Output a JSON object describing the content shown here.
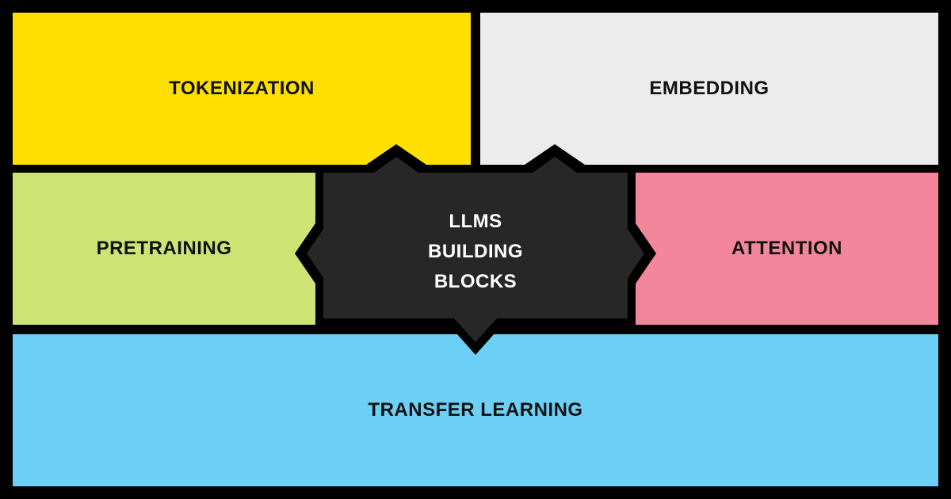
{
  "colors": {
    "background": "#000000",
    "tokenization": "#FFDF00",
    "embedding": "#ECECEC",
    "pretraining": "#CEE374",
    "attention": "#F4869B",
    "transfer_learning": "#6CCFF5",
    "center": "#272727",
    "center_text": "#FFFFFF",
    "panel_text": "#111111"
  },
  "center": {
    "lines": [
      "LLMS",
      "BUILDING",
      "BLOCKS"
    ]
  },
  "panels": {
    "tokenization": "TOKENIZATION",
    "embedding": "EMBEDDING",
    "pretraining": "PRETRAINING",
    "attention": "ATTENTION",
    "transfer_learning": "TRANSFER LEARNING"
  }
}
